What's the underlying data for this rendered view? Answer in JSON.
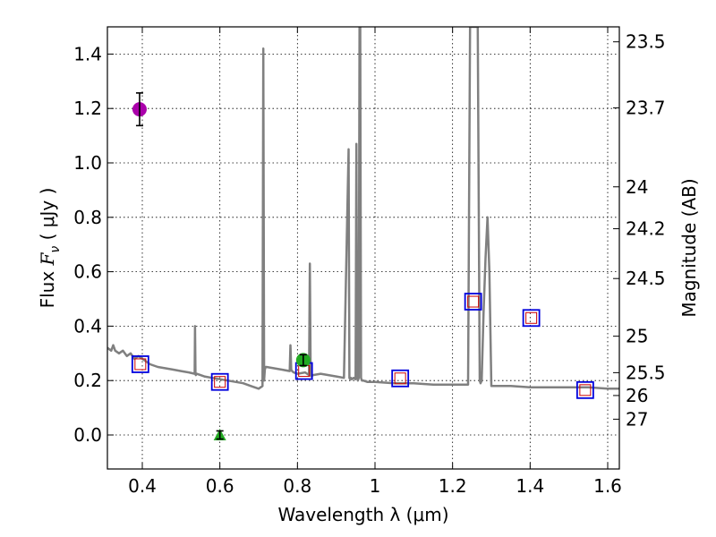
{
  "chart_data": {
    "type": "scatter",
    "xlabel": "Wavelength  λ (μm)",
    "ylabel": "Flux  F_ν  ( μJy )",
    "ylabel_parts": {
      "lead": "Flux  ",
      "symbol": "F",
      "subscript": "ν",
      "tail": "  ( μJy )"
    },
    "y2label": "Magnitude (AB)",
    "xlim": [
      0.31,
      1.63
    ],
    "ylim": [
      -0.125,
      1.5
    ],
    "grid": true,
    "x_ticks": [
      0.4,
      0.6,
      0.8,
      1.0,
      1.2,
      1.4,
      1.6
    ],
    "x_tick_labels": [
      "0.4",
      "0.6",
      "0.8",
      "1",
      "1.2",
      "1.4",
      "1.6"
    ],
    "y_ticks": [
      0.0,
      0.2,
      0.4,
      0.6,
      0.8,
      1.0,
      1.2,
      1.4
    ],
    "y_tick_labels": [
      "0.0",
      "0.2",
      "0.4",
      "0.6",
      "0.8",
      "1.0",
      "1.2",
      "1.4"
    ],
    "mag_ticks": [
      {
        "label": "23.5",
        "flux": 1.445
      },
      {
        "label": "23.7",
        "flux": 1.202
      },
      {
        "label": "24",
        "flux": 0.912
      },
      {
        "label": "24.2",
        "flux": 0.758
      },
      {
        "label": "24.5",
        "flux": 0.575
      },
      {
        "label": "25",
        "flux": 0.363
      },
      {
        "label": "25.5",
        "flux": 0.229
      },
      {
        "label": "26",
        "flux": 0.145
      },
      {
        "label": "27",
        "flux": 0.058
      }
    ],
    "colors": {
      "spectrum": "#808080",
      "model_box": "#0000dd",
      "observed_box": "#cc0000",
      "purple_point": "#aa00aa",
      "green_point": "#22aa22",
      "errorbar": "#000000"
    },
    "series": [
      {
        "name": "model spectrum",
        "type": "line",
        "x": [
          0.31,
          0.32,
          0.325,
          0.33,
          0.34,
          0.35,
          0.36,
          0.37,
          0.38,
          0.39,
          0.4,
          0.41,
          0.42,
          0.44,
          0.46,
          0.48,
          0.5,
          0.52,
          0.535,
          0.536,
          0.537,
          0.538,
          0.54,
          0.56,
          0.58,
          0.6,
          0.62,
          0.64,
          0.66,
          0.68,
          0.7,
          0.71,
          0.712,
          0.714,
          0.716,
          0.718,
          0.72,
          0.74,
          0.76,
          0.78,
          0.782,
          0.784,
          0.786,
          0.79,
          0.8,
          0.82,
          0.83,
          0.832,
          0.834,
          0.836,
          0.84,
          0.86,
          0.88,
          0.9,
          0.92,
          0.932,
          0.934,
          0.936,
          0.938,
          0.94,
          0.945,
          0.95,
          0.952,
          0.954,
          0.956,
          0.958,
          0.96,
          0.962,
          0.964,
          0.966,
          0.97,
          0.98,
          1.0,
          1.05,
          1.1,
          1.15,
          1.2,
          1.24,
          1.245,
          1.25,
          1.255,
          1.26,
          1.265,
          1.27,
          1.272,
          1.275,
          1.28,
          1.285,
          1.29,
          1.295,
          1.3,
          1.35,
          1.4,
          1.45,
          1.5,
          1.55,
          1.6,
          1.63
        ],
        "y": [
          0.32,
          0.31,
          0.33,
          0.31,
          0.3,
          0.31,
          0.29,
          0.3,
          0.28,
          0.29,
          0.28,
          0.27,
          0.26,
          0.25,
          0.245,
          0.24,
          0.235,
          0.23,
          0.225,
          0.4,
          0.23,
          0.22,
          0.225,
          0.215,
          0.21,
          0.205,
          0.2,
          0.195,
          0.19,
          0.18,
          0.17,
          0.18,
          1.42,
          0.2,
          0.24,
          0.25,
          0.25,
          0.245,
          0.24,
          0.235,
          0.33,
          0.24,
          0.235,
          0.23,
          0.225,
          0.23,
          0.22,
          0.63,
          0.22,
          0.215,
          0.22,
          0.225,
          0.22,
          0.215,
          0.21,
          1.05,
          0.21,
          0.205,
          0.21,
          0.205,
          0.21,
          0.205,
          1.07,
          0.22,
          0.2,
          0.21,
          1.5,
          1.5,
          0.21,
          0.2,
          0.2,
          0.195,
          0.195,
          0.19,
          0.19,
          0.185,
          0.185,
          0.185,
          1.5,
          1.5,
          1.5,
          1.5,
          1.5,
          0.2,
          0.19,
          0.2,
          0.45,
          0.65,
          0.8,
          0.6,
          0.18,
          0.18,
          0.175,
          0.175,
          0.175,
          0.175,
          0.17,
          0.17
        ]
      },
      {
        "name": "model photometry",
        "type": "scatter",
        "marker": "open-square",
        "x": [
          0.395,
          0.6,
          0.817,
          1.065,
          1.253,
          1.403,
          1.542
        ],
        "y": [
          0.26,
          0.195,
          0.235,
          0.208,
          0.49,
          0.43,
          0.165
        ]
      },
      {
        "name": "observed photometry",
        "type": "scatter",
        "marker": "open-square-small",
        "x": [
          0.395,
          0.6,
          0.817,
          1.065,
          1.253,
          1.403,
          1.542
        ],
        "y": [
          0.26,
          0.195,
          0.235,
          0.208,
          0.49,
          0.43,
          0.165
        ]
      },
      {
        "name": "purple point",
        "type": "scatter",
        "marker": "circle",
        "x": [
          0.393
        ],
        "y": [
          1.197
        ],
        "yerr": [
          0.06
        ]
      },
      {
        "name": "green point",
        "type": "scatter",
        "marker": "circle",
        "x": [
          0.815
        ],
        "y": [
          0.275
        ],
        "yerr": [
          0.02
        ]
      },
      {
        "name": "green limit",
        "type": "scatter",
        "marker": "triangle",
        "x": [
          0.6
        ],
        "y": [
          0.0
        ],
        "yerr": [
          0.015
        ]
      }
    ]
  }
}
